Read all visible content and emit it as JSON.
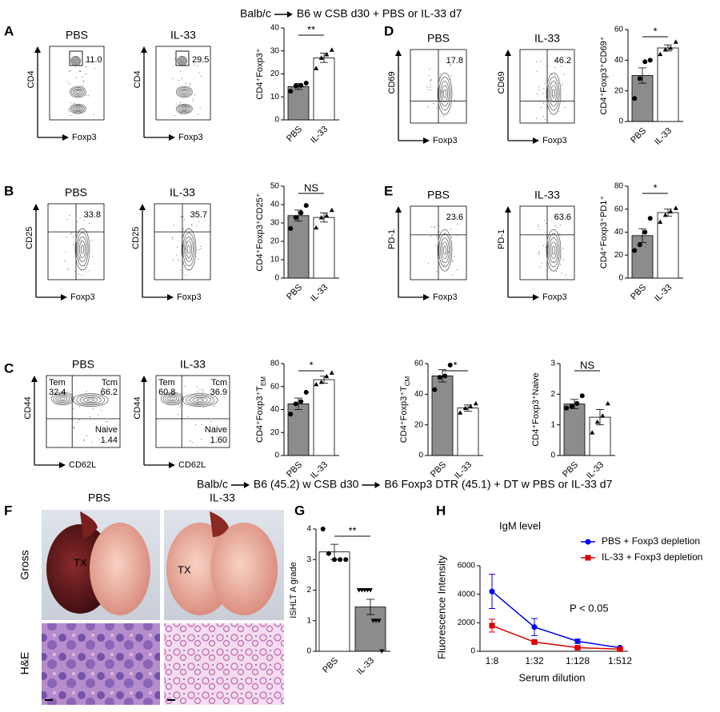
{
  "header": {
    "top": [
      "Balb/c",
      "B6 w CSB d30 + PBS or IL-33 d7"
    ],
    "bottom": [
      "Balb/c",
      "B6 (45.2) w CSB d30",
      "B6 Foxp3 DTR (45.1) + DT w PBS or IL-33 d7"
    ]
  },
  "panel_labels": [
    "A",
    "B",
    "C",
    "D",
    "E",
    "F",
    "G",
    "H"
  ],
  "flow": [
    {
      "title": "PBS",
      "ylabel": "CD4",
      "xlabel": "Foxp3",
      "gate": "11.0"
    },
    {
      "title": "IL-33",
      "ylabel": "CD4",
      "xlabel": "Foxp3",
      "gate": "29.5"
    },
    {
      "title": "PBS",
      "ylabel": "CD25",
      "xlabel": "Foxp3",
      "gate": "33.8"
    },
    {
      "title": "IL-33",
      "ylabel": "CD25",
      "xlabel": "Foxp3",
      "gate": "35.7"
    },
    {
      "title": "PBS",
      "ylabel": "CD44",
      "xlabel": "CD62L",
      "quadrants": [
        {
          "name": "Tem",
          "value": "32.4"
        },
        {
          "name": "Tcm",
          "value": "66.2"
        },
        {
          "name": "Naive",
          "value": "1.44"
        }
      ]
    },
    {
      "title": "IL-33",
      "ylabel": "CD44",
      "xlabel": "CD62L",
      "quadrants": [
        {
          "name": "Tem",
          "value": "60.8"
        },
        {
          "name": "Tcm",
          "value": "36.9"
        },
        {
          "name": "Naive",
          "value": "1.60"
        }
      ]
    },
    {
      "title": "PBS",
      "ylabel": "CD69",
      "xlabel": "Foxp3",
      "gate": "17.8"
    },
    {
      "title": "IL-33",
      "ylabel": "CD69",
      "xlabel": "Foxp3",
      "gate": "46.2"
    },
    {
      "title": "PBS",
      "ylabel": "PD-1",
      "xlabel": "Foxp3",
      "gate": "23.6"
    },
    {
      "title": "IL-33",
      "ylabel": "PD-1",
      "xlabel": "Foxp3",
      "gate": "63.6"
    }
  ],
  "gross": {
    "titles": [
      "PBS",
      "IL-33"
    ],
    "rows": [
      "Gross",
      "H&E"
    ],
    "tx": "TX"
  },
  "chart_data": [
    {
      "type": "bar",
      "ylabel": "CD4⁺Foxp3⁺",
      "categories": [
        "PBS",
        "IL-33"
      ],
      "values": [
        14.5,
        27
      ],
      "errors": [
        1.3,
        2
      ],
      "points": [
        [
          12.5,
          14.8,
          15,
          16
        ],
        [
          22.5,
          27,
          28.5,
          30.5
        ]
      ],
      "markers": [
        "circle",
        "triangle"
      ],
      "colors": [
        "#8c8c8c",
        "#ffffff"
      ],
      "ylim": [
        0,
        40
      ],
      "yticks": [
        0,
        10,
        20,
        30,
        40
      ],
      "significance": "**"
    },
    {
      "type": "bar",
      "ylabel": "CD4⁺Foxp3⁺CD25⁺",
      "categories": [
        "PBS",
        "IL-33"
      ],
      "values": [
        34,
        33
      ],
      "errors": [
        3,
        2.5
      ],
      "points": [
        [
          27,
          33,
          35.5,
          39.5
        ],
        [
          27.5,
          33,
          34,
          37
        ]
      ],
      "markers": [
        "circle",
        "triangle"
      ],
      "colors": [
        "#8c8c8c",
        "#ffffff"
      ],
      "ylim": [
        0,
        50
      ],
      "yticks": [
        0,
        10,
        20,
        30,
        40,
        50
      ],
      "significance": "NS"
    },
    {
      "type": "bar",
      "ylabel": "CD4⁺Foxp3⁺T",
      "ylabel_sub": "EM",
      "categories": [
        "PBS",
        "IL-33"
      ],
      "values": [
        45,
        66
      ],
      "errors": [
        5,
        3
      ],
      "points": [
        [
          36,
          45,
          47,
          55
        ],
        [
          62,
          64,
          69,
          72
        ]
      ],
      "markers": [
        "circle",
        "triangle"
      ],
      "colors": [
        "#8c8c8c",
        "#ffffff"
      ],
      "ylim": [
        0,
        80
      ],
      "yticks": [
        0,
        20,
        40,
        60,
        80
      ],
      "significance": "*"
    },
    {
      "type": "bar",
      "ylabel": "CD4⁺Foxp3⁺T",
      "ylabel_sub": "CM",
      "categories": [
        "PBS",
        "IL-33"
      ],
      "values": [
        52,
        31
      ],
      "errors": [
        4,
        2
      ],
      "points": [
        [
          43,
          51,
          52,
          59
        ],
        [
          28,
          31,
          32,
          34
        ]
      ],
      "markers": [
        "circle",
        "triangle"
      ],
      "colors": [
        "#8c8c8c",
        "#ffffff"
      ],
      "ylim": [
        0,
        60
      ],
      "yticks": [
        0,
        20,
        40,
        60
      ],
      "significance": "*"
    },
    {
      "type": "bar",
      "ylabel": "CD4⁺Foxp3⁺Naive",
      "categories": [
        "PBS",
        "IL-33"
      ],
      "values": [
        1.68,
        1.25
      ],
      "errors": [
        0.15,
        0.25
      ],
      "points": [
        [
          1.55,
          1.6,
          1.7,
          1.95
        ],
        [
          0.75,
          1.1,
          1.3,
          1.7
        ]
      ],
      "markers": [
        "circle",
        "triangle"
      ],
      "colors": [
        "#8c8c8c",
        "#ffffff"
      ],
      "ylim": [
        0,
        3
      ],
      "yticks": [
        0,
        1,
        2,
        3
      ],
      "significance": "NS"
    },
    {
      "type": "bar",
      "ylabel": "CD4⁺Foxp3⁺CD69⁺",
      "categories": [
        "PBS",
        "IL-33"
      ],
      "values": [
        30,
        48
      ],
      "errors": [
        5,
        2
      ],
      "points": [
        [
          15,
          28,
          39,
          40
        ],
        [
          44,
          47,
          48,
          52
        ]
      ],
      "markers": [
        "circle",
        "triangle"
      ],
      "colors": [
        "#8c8c8c",
        "#ffffff"
      ],
      "ylim": [
        0,
        60
      ],
      "yticks": [
        0,
        20,
        40,
        60
      ],
      "significance": "*"
    },
    {
      "type": "bar",
      "ylabel": "CD4⁺Foxp3⁺PD1⁺",
      "categories": [
        "PBS",
        "IL-33"
      ],
      "values": [
        37,
        57
      ],
      "errors": [
        6,
        3
      ],
      "points": [
        [
          24,
          29,
          40,
          52
        ],
        [
          49,
          55,
          58,
          61
        ]
      ],
      "markers": [
        "circle",
        "triangle"
      ],
      "colors": [
        "#8c8c8c",
        "#ffffff"
      ],
      "ylim": [
        0,
        80
      ],
      "yticks": [
        0,
        20,
        40,
        60,
        80
      ],
      "significance": "*"
    },
    {
      "type": "bar",
      "ylabel": "ISHLT A grade",
      "categories": [
        "PBS",
        "IL-33"
      ],
      "values": [
        3.25,
        1.45
      ],
      "errors": [
        0.25,
        0.25
      ],
      "points": [
        [
          4,
          3.2,
          3,
          3,
          3
        ],
        [
          2,
          2,
          2,
          2,
          2,
          1,
          1,
          1,
          0
        ]
      ],
      "markers": [
        "circle",
        "triangle-down"
      ],
      "colors": [
        "#ffffff",
        "#8c8c8c"
      ],
      "ylim": [
        0,
        4
      ],
      "yticks": [
        0,
        1,
        2,
        3,
        4
      ],
      "significance": "**"
    },
    {
      "type": "line",
      "title": "IgM level",
      "xlabel": "Serum dilution",
      "ylabel": "Fluorescence Intensity",
      "annotation": "P < 0.05",
      "categories": [
        "1:8",
        "1:32",
        "1:128",
        "1:512"
      ],
      "series": [
        {
          "name": "PBS + Foxp3 depletion",
          "color": "#0000ee",
          "marker": "circle",
          "values": [
            4200,
            1700,
            700,
            250
          ],
          "errors": [
            1200,
            600,
            150,
            50
          ]
        },
        {
          "name": "IL-33 + Foxp3 depletion",
          "color": "#dd0000",
          "marker": "square",
          "values": [
            1800,
            650,
            250,
            150
          ],
          "errors": [
            450,
            100,
            80,
            40
          ]
        }
      ],
      "ylim": [
        0,
        6000
      ],
      "yticks": [
        0,
        2000,
        4000,
        6000
      ]
    }
  ]
}
